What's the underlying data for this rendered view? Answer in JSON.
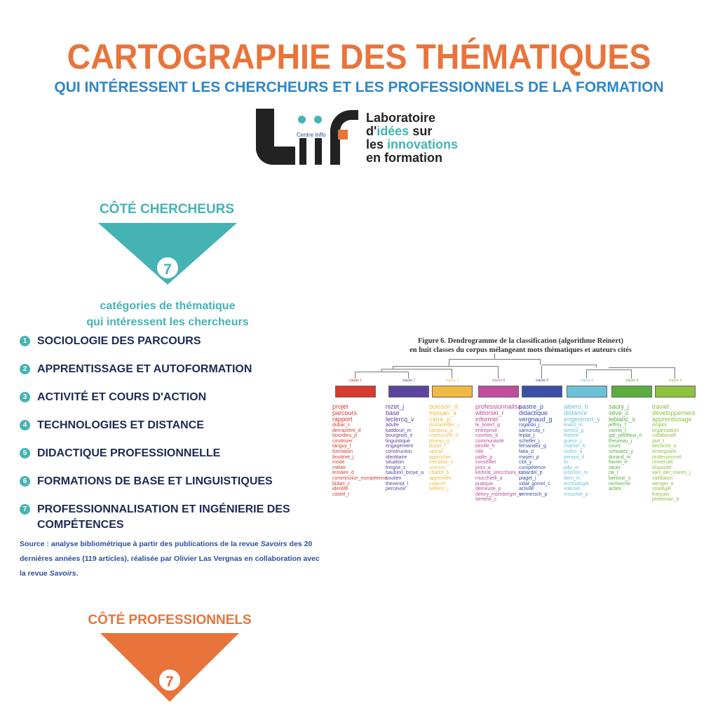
{
  "header": {
    "title": "CARTOGRAPHIE DES THÉMATIQUES",
    "subtitle": "QUI INTÉRESSENT LES CHERCHEURS ET LES PROFESSIONNELS DE LA FORMATION"
  },
  "logo": {
    "brand": "Centre Inffo",
    "line1": "Laboratoire",
    "line2a": "d'",
    "line2b": "idées",
    "line2c": " sur",
    "line3a": "les ",
    "line3b": "innovations",
    "line4": "en formation"
  },
  "researchers": {
    "heading": "CÔTÉ CHERCHEURS",
    "count": "7",
    "caption1": "catégories de thématique",
    "caption2": "qui intéressent les chercheurs",
    "items": [
      {
        "num": "1",
        "label": "SOCIOLOGIE DES PARCOURS"
      },
      {
        "num": "2",
        "label": "APPRENTISSAGE ET AUTOFORMATION"
      },
      {
        "num": "3",
        "label": "ACTIVITÉ ET COURS D'ACTION"
      },
      {
        "num": "4",
        "label": "TECHNOLOGIES ET DISTANCE"
      },
      {
        "num": "5",
        "label": "DIDACTIQUE PROFESSIONNELLE"
      },
      {
        "num": "6",
        "label": "FORMATIONS DE BASE ET LINGUISTIQUES"
      },
      {
        "num": "7",
        "label": "PROFESSIONNALISATION ET INGÉNIERIE DES COMPÉTENCES"
      }
    ],
    "source_a": "Source : analyse bibliométrique à partir des publications de la revue ",
    "source_b": "Savoirs",
    "source_c": " des 20 dernières années (119 articles), réalisée par Olivier Las Vergnas en collaboration avec la revue ",
    "source_d": "Savoirs",
    "source_e": "."
  },
  "professionals": {
    "heading": "CÔTÉ PROFESSIONNELS",
    "count": "7"
  },
  "figure": {
    "caption1": "Figure 6. Dendrogramme de la classification (algorithme Reinert)",
    "caption2": "en huit classes du corpus mélangeant mots thématiques et auteurs cités",
    "classes": [
      {
        "label": "classe 1",
        "color": "#D93A2E",
        "words": [
          "projet",
          "parcours",
          "rapport",
          "dubar_c",
          "demazière_d",
          "bourdieu_p",
          "continuer",
          "tanguy_l",
          "formation",
          "boutinet_j",
          "mode",
          "métier",
          "lemaire_d",
          "commission_europeenne",
          "bidart_c",
          "identité",
          "castel_r"
        ]
      },
      {
        "label": "classe 7",
        "color": "#5B45A0",
        "words": [
          "nizet_j",
          "base",
          "leclercq_v",
          "adulte",
          "kaddouri_m",
          "bourgeois_e",
          "linguistique",
          "engagement",
          "construction",
          "identitaire",
          "situation",
          "freigne_c",
          "baubion_broye_a",
          "soutien",
          "thevenot_l",
          "percevoir"
        ]
      },
      {
        "label": "classe 2",
        "color": "#F0B940",
        "words": [
          "poisson_d",
          "moisan_a",
          "carre_p",
          "dumazedier_j",
          "bandura_a",
          "martuccelli_d",
          "pineau_g",
          "dubet_f",
          "sportif",
          "approcher",
          "tremblay_n",
          "unesco",
          "charlot_b",
          "apprendre",
          "collectif",
          "bellierc_j"
        ]
      },
      {
        "label": "classe 8",
        "color": "#C04C9C",
        "words": [
          "professionnalisa",
          "wittorski_r",
          "informel",
          "le_boterf_g",
          "entreprise",
          "courtois_b",
          "communauté",
          "bezille_h",
          "rôle",
          "paille_p",
          "conseiller",
          "jorro_a",
          "kerbrat_orecchioni_c",
          "mucchielli_a",
          "pratique",
          "demeuse_p",
          "delory_momberger_c",
          "berteloi_c"
        ]
      },
      {
        "label": "classe 6",
        "color": "#3B4FA8",
        "words": [
          "pastre_p",
          "didactique",
          "vergnaud_g",
          "rogalski_j",
          "samurcay_r",
          "leplat_j",
          "scheller_j",
          "fernandez_g",
          "faita_d",
          "mayen_p",
          "clot_y",
          "compétence",
          "rabardel_p",
          "piaget_j",
          "vidal_gomel_c",
          "activité",
          "vermersch_p"
        ]
      },
      {
        "label": "classe 5",
        "color": "#6CC3D8",
        "words": [
          "albero_b",
          "distance",
          "engestrom_y",
          "linard_m",
          "lameul_g",
          "théorie",
          "guerin_j",
          "charlier_b",
          "zeitler_a",
          "peraya_d",
          "tic",
          "pilly_m",
          "johnson_m",
          "dero_m",
          "technologie",
          "internet",
          "mouchet_a"
        ]
      },
      {
        "label": "classe 4",
        "color": "#5AAE3E",
        "words": [
          "saury_j",
          "seve_c",
          "leblanc_s",
          "jeffroy_f",
          "varela_f",
          "gal_petitfaux_n",
          "theureau_j",
          "cours",
          "schwartz_y",
          "durand_m",
          "flavier_e",
          "situer",
          "ria_l",
          "bertone_s",
          "recherche",
          "action"
        ]
      },
      {
        "label": "classe 3",
        "color": "#8DC140",
        "words": [
          "travail",
          "développement",
          "apprentissage",
          "emploi",
          "organisation",
          "collaboratif",
          "piot_t",
          "decoche_a",
          "enseignant",
          "professionnel",
          "université",
          "dispositif",
          "vart_der_maren_j",
          "validation",
          "wenger_e",
          "stratégie",
          "français",
          "prelieman_b"
        ]
      }
    ]
  }
}
